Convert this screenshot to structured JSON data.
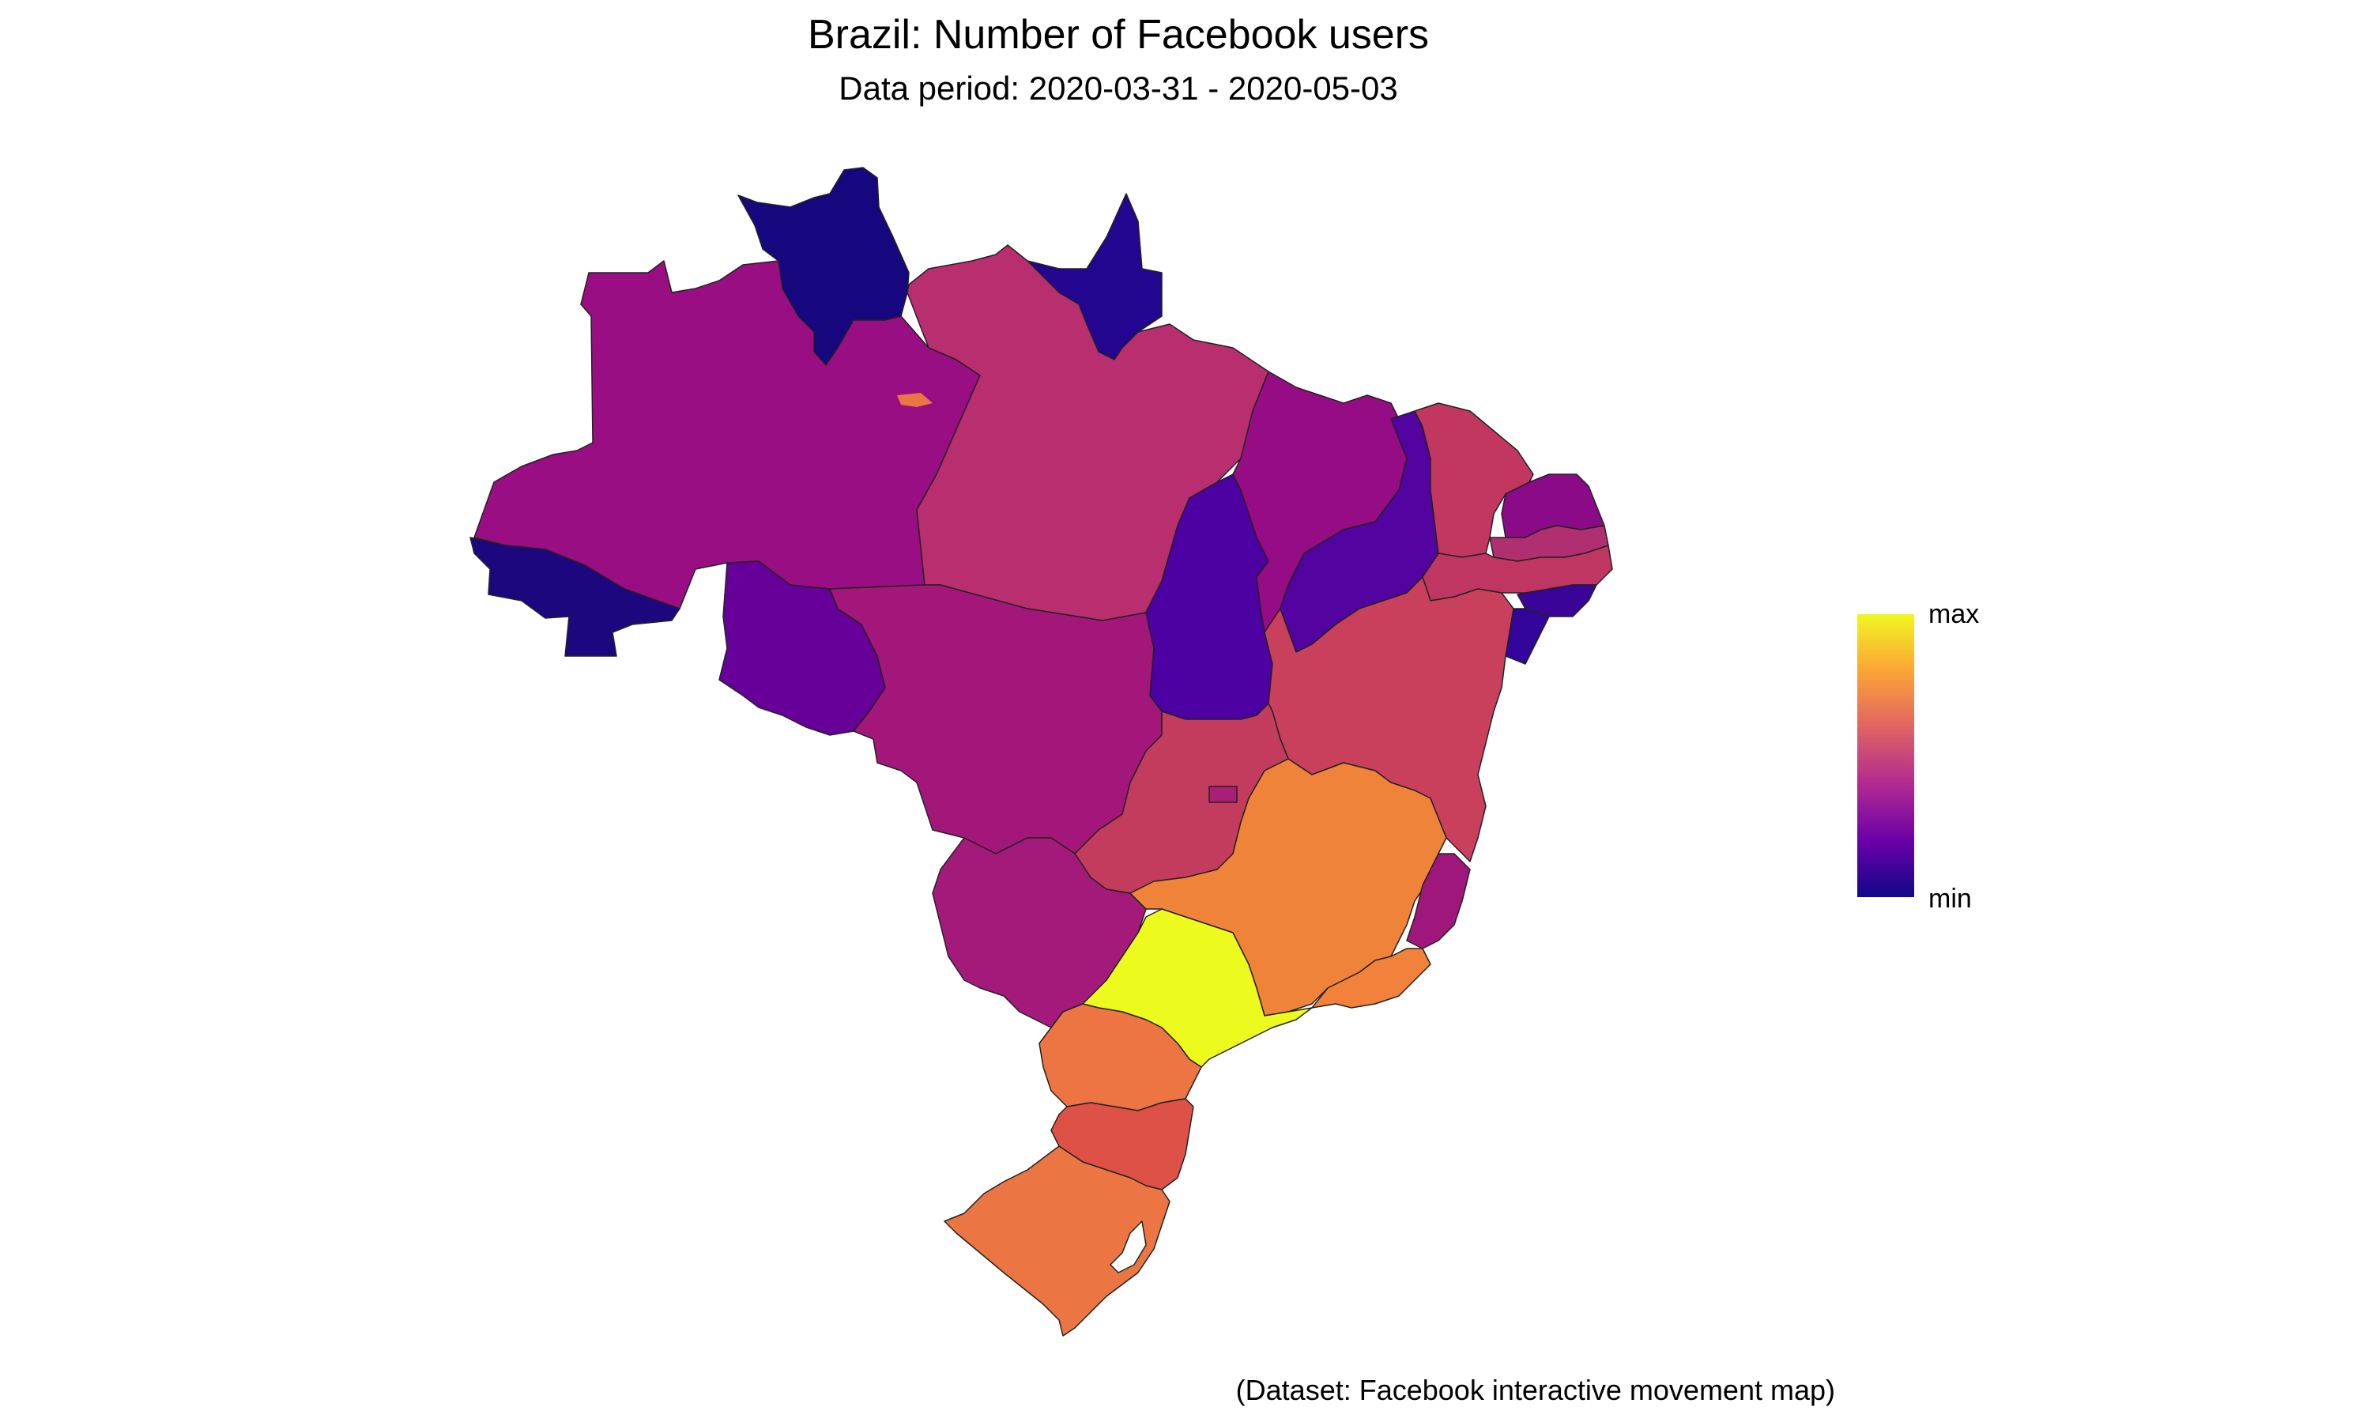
{
  "title": "Brazil: Number of Facebook users",
  "subtitle": "Data period: 2020-03-31 - 2020-05-03",
  "caption": "(Dataset: Facebook interactive movement map)",
  "legend": {
    "max_label": "max",
    "min_label": "min"
  },
  "palette": {
    "max": "#f0f921",
    "high": "#fca636",
    "mid": "#e16462",
    "midlow": "#b12a90",
    "low": "#6a00a8",
    "min": "#0d0887"
  },
  "regions": [
    {
      "name": "Roraima",
      "level": 0.02,
      "color": "#16077f"
    },
    {
      "name": "Amapa",
      "level": 0.05,
      "color": "#230690"
    },
    {
      "name": "Amazonas",
      "level": 0.38,
      "color": "#990e82"
    },
    {
      "name": "Para",
      "level": 0.55,
      "color": "#b82e6e"
    },
    {
      "name": "Acre",
      "level": 0.04,
      "color": "#1c077f"
    },
    {
      "name": "Rondonia",
      "level": 0.22,
      "color": "#670099"
    },
    {
      "name": "Mato Grosso",
      "level": 0.45,
      "color": "#a3177a"
    },
    {
      "name": "Tocantins",
      "level": 0.14,
      "color": "#4d01a2"
    },
    {
      "name": "Maranhao",
      "level": 0.36,
      "color": "#950c84"
    },
    {
      "name": "Piaui",
      "level": 0.18,
      "color": "#5303a0"
    },
    {
      "name": "Ceara",
      "level": 0.58,
      "color": "#c2375f"
    },
    {
      "name": "Rio Grande do Norte",
      "level": 0.33,
      "color": "#8a0a88"
    },
    {
      "name": "Paraiba",
      "level": 0.5,
      "color": "#b02f71"
    },
    {
      "name": "Pernambuco",
      "level": 0.55,
      "color": "#bf3663"
    },
    {
      "name": "Alagoas",
      "level": 0.12,
      "color": "#3b0498"
    },
    {
      "name": "Sergipe",
      "level": 0.1,
      "color": "#32049a"
    },
    {
      "name": "Bahia",
      "level": 0.6,
      "color": "#c9405c"
    },
    {
      "name": "Goias",
      "level": 0.6,
      "color": "#c33c5d"
    },
    {
      "name": "Distrito Federal",
      "level": 0.42,
      "color": "#a81f77"
    },
    {
      "name": "Mato Grosso do Sul",
      "level": 0.45,
      "color": "#a31a7a"
    },
    {
      "name": "Minas Gerais",
      "level": 0.78,
      "color": "#ef833a"
    },
    {
      "name": "Espirito Santo",
      "level": 0.38,
      "color": "#a0177b"
    },
    {
      "name": "Rio de Janeiro",
      "level": 0.8,
      "color": "#f2823b"
    },
    {
      "name": "Sao Paulo",
      "level": 1.0,
      "color": "#ecfa1d"
    },
    {
      "name": "Parana",
      "level": 0.76,
      "color": "#ec7543"
    },
    {
      "name": "Santa Catarina",
      "level": 0.66,
      "color": "#de5147"
    },
    {
      "name": "Rio Grande do Sul",
      "level": 0.72,
      "color": "#ec7544"
    }
  ]
}
